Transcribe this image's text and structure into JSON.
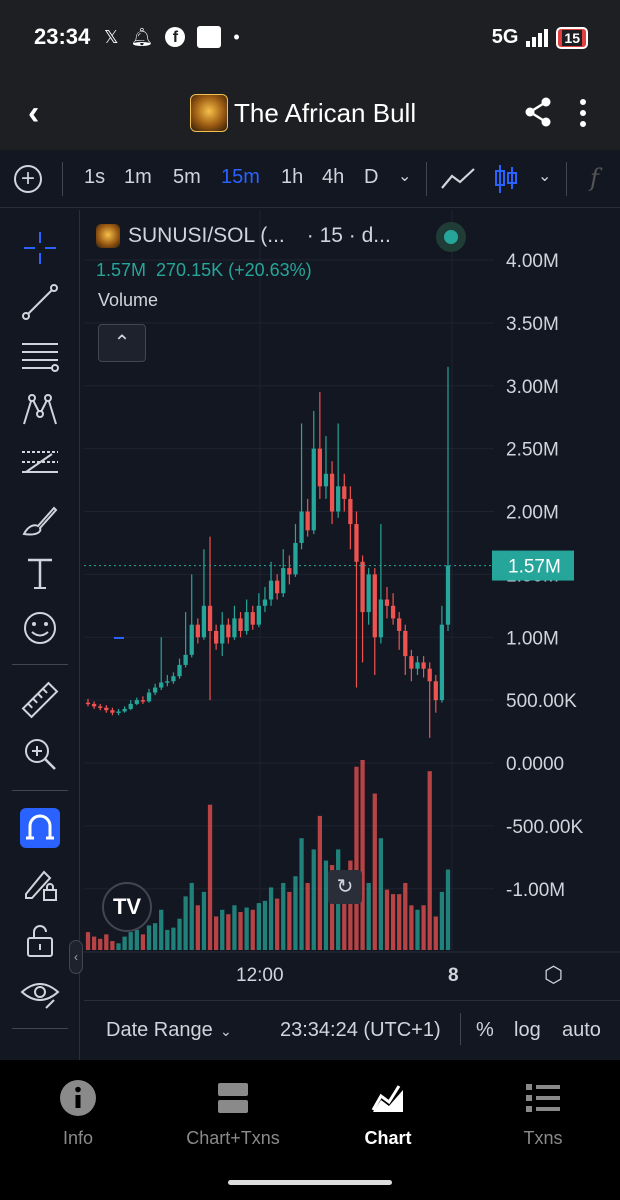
{
  "status_bar": {
    "time": "23:34",
    "network": "5G",
    "battery": "15",
    "notification_icons": [
      "x-icon",
      "bell-icon",
      "facebook-icon",
      "english-dictionary-icon",
      "dot-icon"
    ]
  },
  "app_bar": {
    "title": "The African Bull",
    "logo_text": "SUNUSI"
  },
  "toolbar": {
    "timeframes": [
      "1s",
      "1m",
      "5m",
      "15m",
      "1h",
      "4h",
      "D"
    ],
    "active_timeframe": "15m"
  },
  "legend": {
    "symbol": "SUNUSI/SOL (...",
    "interval": "· 15 · d...",
    "price_line": "1.57M  270.15K (+20.63%)",
    "indicator": "Volume"
  },
  "bottom_bar": {
    "date_range": "Date Range",
    "time": "23:34:24 (UTC+1)",
    "percent": "%",
    "log": "log",
    "auto": "auto"
  },
  "nav": {
    "items": [
      {
        "label": "Info",
        "icon": "info-icon"
      },
      {
        "label": "Chart+Txns",
        "icon": "split-view-icon"
      },
      {
        "label": "Chart",
        "icon": "chart-icon"
      },
      {
        "label": "Txns",
        "icon": "list-icon"
      }
    ],
    "active": "Chart"
  },
  "colors": {
    "up": "#26a69a",
    "down": "#ef5350",
    "accent": "#2962ff",
    "background": "#131722"
  },
  "chart_data": {
    "type": "candlestick",
    "y_ticks": [
      "4.00M",
      "3.50M",
      "3.00M",
      "2.50M",
      "2.00M",
      "1.50M",
      "1.00M",
      "500.00K",
      "0.0000",
      "-500.00K",
      "-1.00M"
    ],
    "y_tick_values": [
      4000000,
      3500000,
      3000000,
      2500000,
      2000000,
      1500000,
      1000000,
      500000,
      0,
      -500000,
      -1000000
    ],
    "x_ticks": [
      "12:00",
      "8"
    ],
    "current_price_label": "1.57M",
    "current_price": 1570000,
    "ylim": [
      -1500000,
      4300000
    ],
    "grid": true,
    "candles": [
      [
        480000,
        470000,
        510000,
        450000
      ],
      [
        470000,
        450000,
        490000,
        430000
      ],
      [
        450000,
        440000,
        470000,
        420000
      ],
      [
        440000,
        420000,
        460000,
        400000
      ],
      [
        420000,
        400000,
        440000,
        380000
      ],
      [
        400000,
        410000,
        430000,
        380000
      ],
      [
        410000,
        430000,
        450000,
        400000
      ],
      [
        430000,
        470000,
        500000,
        420000
      ],
      [
        470000,
        500000,
        520000,
        460000
      ],
      [
        500000,
        490000,
        530000,
        470000
      ],
      [
        490000,
        560000,
        590000,
        480000
      ],
      [
        560000,
        600000,
        630000,
        540000
      ],
      [
        600000,
        640000,
        1000000,
        580000
      ],
      [
        640000,
        650000,
        700000,
        610000
      ],
      [
        650000,
        690000,
        720000,
        630000
      ],
      [
        690000,
        780000,
        830000,
        670000
      ],
      [
        780000,
        860000,
        1200000,
        760000
      ],
      [
        860000,
        1100000,
        1500000,
        840000
      ],
      [
        1100000,
        1000000,
        1150000,
        950000
      ],
      [
        1000000,
        1250000,
        1700000,
        980000
      ],
      [
        1250000,
        1050000,
        1800000,
        500000
      ],
      [
        1050000,
        950000,
        1100000,
        900000
      ],
      [
        950000,
        1100000,
        1200000,
        850000
      ],
      [
        1100000,
        1000000,
        1150000,
        950000
      ],
      [
        1000000,
        1150000,
        1250000,
        980000
      ],
      [
        1150000,
        1050000,
        1200000,
        1000000
      ],
      [
        1050000,
        1200000,
        1300000,
        1020000
      ],
      [
        1200000,
        1100000,
        1250000,
        1060000
      ],
      [
        1100000,
        1250000,
        1350000,
        1080000
      ],
      [
        1250000,
        1300000,
        1400000,
        1200000
      ],
      [
        1300000,
        1450000,
        1600000,
        1250000
      ],
      [
        1450000,
        1350000,
        1500000,
        1300000
      ],
      [
        1350000,
        1550000,
        1700000,
        1320000
      ],
      [
        1550000,
        1500000,
        1650000,
        1420000
      ],
      [
        1500000,
        1750000,
        1900000,
        1480000
      ],
      [
        1750000,
        2000000,
        2700000,
        1700000
      ],
      [
        2000000,
        1850000,
        2100000,
        1800000
      ],
      [
        1850000,
        2500000,
        2800000,
        1820000
      ],
      [
        2500000,
        2200000,
        2950000,
        2100000
      ],
      [
        2200000,
        2300000,
        2600000,
        2100000
      ],
      [
        2300000,
        2000000,
        2400000,
        1900000
      ],
      [
        2000000,
        2200000,
        2700000,
        1950000
      ],
      [
        2200000,
        2100000,
        2300000,
        2000000
      ],
      [
        2100000,
        1900000,
        2200000,
        1700000
      ],
      [
        1900000,
        1600000,
        2000000,
        600000
      ],
      [
        1600000,
        1200000,
        1650000,
        800000
      ],
      [
        1200000,
        1500000,
        1550000,
        1100000
      ],
      [
        1500000,
        1000000,
        1550000,
        700000
      ],
      [
        1000000,
        1300000,
        1900000,
        950000
      ],
      [
        1300000,
        1250000,
        1400000,
        1150000
      ],
      [
        1250000,
        1150000,
        1350000,
        1100000
      ],
      [
        1150000,
        1050000,
        1200000,
        900000
      ],
      [
        1050000,
        850000,
        1100000,
        700000
      ],
      [
        850000,
        750000,
        900000,
        650000
      ],
      [
        750000,
        800000,
        850000,
        700000
      ],
      [
        800000,
        750000,
        850000,
        680000
      ],
      [
        750000,
        650000,
        800000,
        200000
      ],
      [
        650000,
        500000,
        700000,
        400000
      ],
      [
        500000,
        1100000,
        1250000,
        480000
      ],
      [
        1100000,
        1570000,
        3150000,
        1050000
      ]
    ],
    "volumes": [
      80000,
      60000,
      50000,
      70000,
      40000,
      30000,
      60000,
      80000,
      90000,
      70000,
      110000,
      120000,
      180000,
      90000,
      100000,
      140000,
      240000,
      300000,
      200000,
      260000,
      650000,
      150000,
      180000,
      160000,
      200000,
      170000,
      190000,
      180000,
      210000,
      220000,
      280000,
      230000,
      300000,
      260000,
      330000,
      500000,
      300000,
      450000,
      600000,
      400000,
      380000,
      450000,
      330000,
      400000,
      820000,
      850000,
      300000,
      700000,
      500000,
      270000,
      250000,
      250000,
      300000,
      200000,
      180000,
      200000,
      800000,
      150000,
      260000,
      360000
    ]
  }
}
